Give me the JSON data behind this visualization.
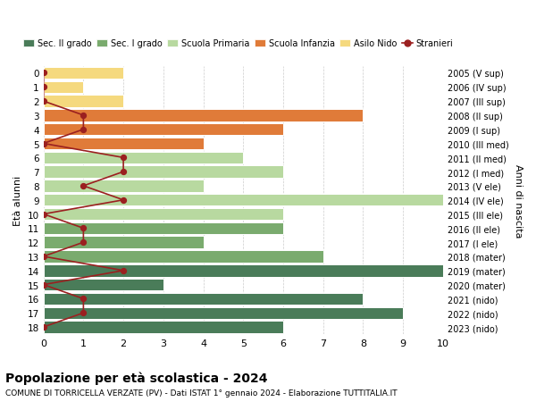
{
  "ages": [
    18,
    17,
    16,
    15,
    14,
    13,
    12,
    11,
    10,
    9,
    8,
    7,
    6,
    5,
    4,
    3,
    2,
    1,
    0
  ],
  "years": [
    "2005 (V sup)",
    "2006 (IV sup)",
    "2007 (III sup)",
    "2008 (II sup)",
    "2009 (I sup)",
    "2010 (III med)",
    "2011 (II med)",
    "2012 (I med)",
    "2013 (V ele)",
    "2014 (IV ele)",
    "2015 (III ele)",
    "2016 (II ele)",
    "2017 (I ele)",
    "2018 (mater)",
    "2019 (mater)",
    "2020 (mater)",
    "2021 (nido)",
    "2022 (nido)",
    "2023 (nido)"
  ],
  "bar_values": [
    6,
    9,
    8,
    3,
    10,
    7,
    4,
    6,
    6,
    10,
    4,
    6,
    5,
    4,
    6,
    8,
    2,
    1,
    2
  ],
  "bar_colors": [
    "#4a7c59",
    "#4a7c59",
    "#4a7c59",
    "#4a7c59",
    "#4a7c59",
    "#7aab6e",
    "#7aab6e",
    "#7aab6e",
    "#b8d9a0",
    "#b8d9a0",
    "#b8d9a0",
    "#b8d9a0",
    "#b8d9a0",
    "#e07b39",
    "#e07b39",
    "#e07b39",
    "#f5d97e",
    "#f5d97e",
    "#f5d97e"
  ],
  "stranieri_values": [
    0,
    1,
    1,
    0,
    2,
    0,
    1,
    1,
    0,
    2,
    1,
    2,
    2,
    0,
    1,
    1,
    0,
    0,
    0
  ],
  "stranieri_color": "#9b2020",
  "title": "Popolazione per età scolastica - 2024",
  "subtitle": "COMUNE DI TORRICELLA VERZATE (PV) - Dati ISTAT 1° gennaio 2024 - Elaborazione TUTTITALIA.IT",
  "ylabel": "Età alunni",
  "y2label": "Anni di nascita",
  "xlim": [
    0,
    10
  ],
  "background_color": "#ffffff",
  "legend_labels": [
    "Sec. II grado",
    "Sec. I grado",
    "Scuola Primaria",
    "Scuola Infanzia",
    "Asilo Nido",
    "Stranieri"
  ],
  "legend_colors": [
    "#4a7c59",
    "#7aab6e",
    "#b8d9a0",
    "#e07b39",
    "#f5d97e",
    "#9b2020"
  ],
  "grid_color": "#cccccc"
}
